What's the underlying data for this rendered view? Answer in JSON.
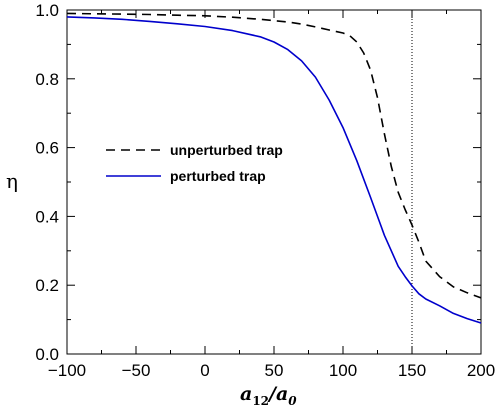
{
  "chart_data": {
    "type": "line",
    "title": "",
    "xlabel": "a12/a0",
    "xlabel_parts": {
      "main": "a",
      "sub": "12",
      "sep": "/",
      "main2": "a",
      "sub2": "0"
    },
    "ylabel": "η",
    "xlim": [
      -100,
      200
    ],
    "ylim": [
      0.0,
      1.0
    ],
    "x_ticks": [
      -100,
      -50,
      0,
      50,
      100,
      150,
      200
    ],
    "x_tick_labels": [
      "−100",
      "−50",
      "0",
      "50",
      "100",
      "150",
      "200"
    ],
    "y_ticks": [
      0.0,
      0.2,
      0.4,
      0.6,
      0.8,
      1.0
    ],
    "y_tick_labels": [
      "0.0",
      "0.2",
      "0.4",
      "0.6",
      "0.8",
      "1.0"
    ],
    "grid": false,
    "legend_position": "middle-left",
    "reference_line": {
      "x": 150,
      "style": "dotted",
      "color": "#000000"
    },
    "series": [
      {
        "name": "unperturbed trap",
        "style": "dashed",
        "color": "#000000",
        "x": [
          -100,
          -80,
          -60,
          -40,
          -20,
          0,
          20,
          40,
          60,
          70,
          80,
          90,
          100,
          105,
          110,
          115,
          120,
          125,
          130,
          135,
          140,
          145,
          150,
          155,
          160,
          170,
          180,
          190,
          200
        ],
        "y": [
          0.99,
          0.989,
          0.988,
          0.987,
          0.985,
          0.983,
          0.979,
          0.973,
          0.965,
          0.959,
          0.951,
          0.942,
          0.933,
          0.925,
          0.907,
          0.875,
          0.825,
          0.745,
          0.64,
          0.545,
          0.47,
          0.42,
          0.375,
          0.325,
          0.27,
          0.225,
          0.195,
          0.178,
          0.163
        ]
      },
      {
        "name": "perturbed trap",
        "style": "solid",
        "color": "#0000cc",
        "x": [
          -100,
          -80,
          -60,
          -40,
          -20,
          0,
          20,
          40,
          50,
          60,
          70,
          80,
          90,
          100,
          110,
          120,
          130,
          140,
          145,
          150,
          155,
          160,
          170,
          180,
          190,
          200
        ],
        "y": [
          0.98,
          0.977,
          0.973,
          0.967,
          0.96,
          0.952,
          0.94,
          0.922,
          0.907,
          0.885,
          0.852,
          0.805,
          0.738,
          0.658,
          0.562,
          0.455,
          0.345,
          0.255,
          0.225,
          0.198,
          0.175,
          0.16,
          0.14,
          0.118,
          0.103,
          0.09
        ]
      }
    ]
  }
}
